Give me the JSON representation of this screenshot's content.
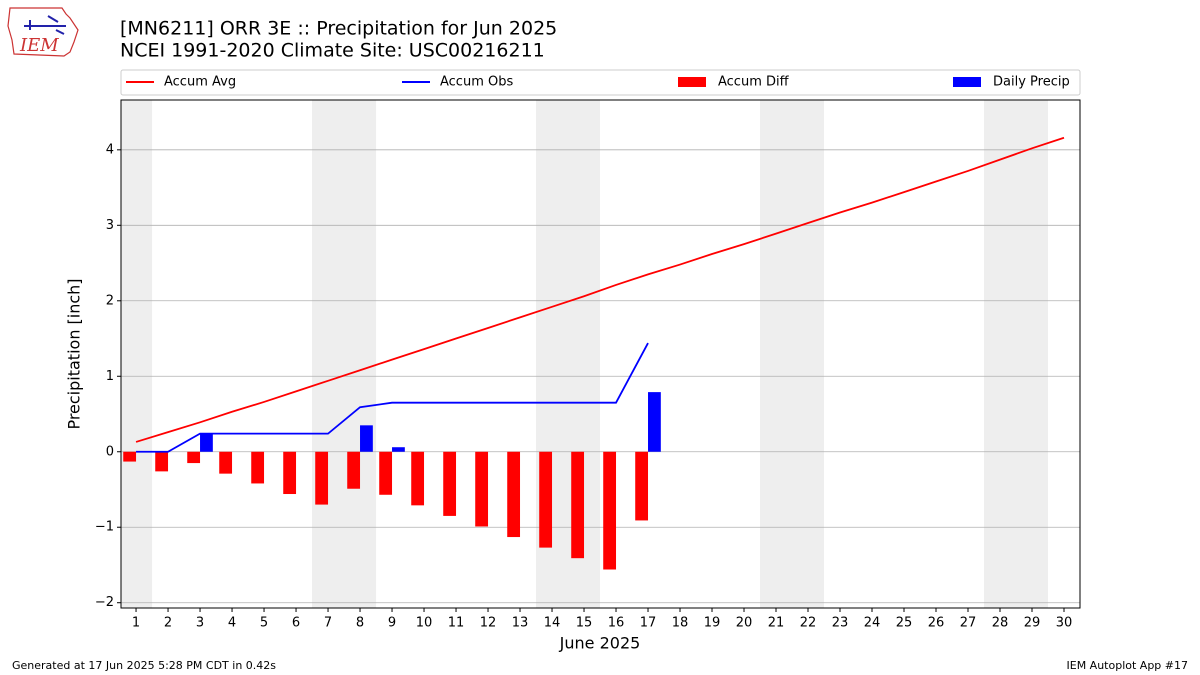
{
  "logo_text": "IEM",
  "footer": {
    "left": "Generated at 17 Jun 2025 5:28 PM CDT in 0.42s",
    "right": "IEM Autoplot App #17"
  },
  "chart_data": {
    "type": "bar-line",
    "title": "[MN6211] ORR 3E :: Precipitation for Jun 2025",
    "subtitle": "NCEI 1991-2020 Climate Site: USC00216211",
    "xlabel": "June 2025",
    "ylabel": "Precipitation [inch]",
    "x": [
      1,
      2,
      3,
      4,
      5,
      6,
      7,
      8,
      9,
      10,
      11,
      12,
      13,
      14,
      15,
      16,
      17,
      18,
      19,
      20,
      21,
      22,
      23,
      24,
      25,
      26,
      27,
      28,
      29,
      30
    ],
    "series": [
      {
        "name": "Accum Avg",
        "kind": "line",
        "color": "#ff0000",
        "values": [
          0.13,
          0.26,
          0.39,
          0.53,
          0.66,
          0.8,
          0.94,
          1.08,
          1.22,
          1.36,
          1.5,
          1.64,
          1.78,
          1.92,
          2.06,
          2.21,
          2.35,
          2.48,
          2.62,
          2.75,
          2.89,
          3.03,
          3.17,
          3.3,
          3.44,
          3.58,
          3.72,
          3.87,
          4.02,
          4.16
        ]
      },
      {
        "name": "Accum Obs",
        "kind": "line",
        "color": "#0000ff",
        "values": [
          0,
          0,
          0.24,
          0.24,
          0.24,
          0.24,
          0.24,
          0.59,
          0.65,
          0.65,
          0.65,
          0.65,
          0.65,
          0.65,
          0.65,
          0.65,
          1.44,
          null,
          null,
          null,
          null,
          null,
          null,
          null,
          null,
          null,
          null,
          null,
          null,
          null
        ]
      },
      {
        "name": "Accum Diff",
        "kind": "bar",
        "color": "#ff0000",
        "values": [
          -0.13,
          -0.26,
          -0.15,
          -0.29,
          -0.42,
          -0.56,
          -0.7,
          -0.49,
          -0.57,
          -0.71,
          -0.85,
          -0.99,
          -1.13,
          -1.27,
          -1.41,
          -1.56,
          -0.91,
          null,
          null,
          null,
          null,
          null,
          null,
          null,
          null,
          null,
          null,
          null,
          null,
          null
        ]
      },
      {
        "name": "Daily Precip",
        "kind": "bar",
        "color": "#0000ff",
        "values": [
          0,
          0,
          0.24,
          0,
          0,
          0,
          0,
          0.35,
          0.06,
          0,
          0,
          0,
          0,
          0,
          0,
          0,
          0.79,
          null,
          null,
          null,
          null,
          null,
          null,
          null,
          null,
          null,
          null,
          null,
          null,
          null
        ]
      }
    ],
    "xlim": [
      0.53,
      30.5
    ],
    "ylim": [
      -2.07,
      4.66
    ],
    "xticks": [
      1,
      2,
      3,
      4,
      5,
      6,
      7,
      8,
      9,
      10,
      11,
      12,
      13,
      14,
      15,
      16,
      17,
      18,
      19,
      20,
      21,
      22,
      23,
      24,
      25,
      26,
      27,
      28,
      29,
      30
    ],
    "yticks": [
      {
        "value": -2,
        "label": "−2"
      },
      {
        "value": -1,
        "label": "−1"
      },
      0,
      1,
      2,
      3,
      4
    ],
    "grid": "y",
    "shaded_spans": [
      [
        0.5,
        1.5
      ],
      [
        6.5,
        8.5
      ],
      [
        13.5,
        15.5
      ],
      [
        20.5,
        22.5
      ],
      [
        27.5,
        29.5
      ]
    ],
    "shade_color": "#eeeeee",
    "legend": "above"
  }
}
